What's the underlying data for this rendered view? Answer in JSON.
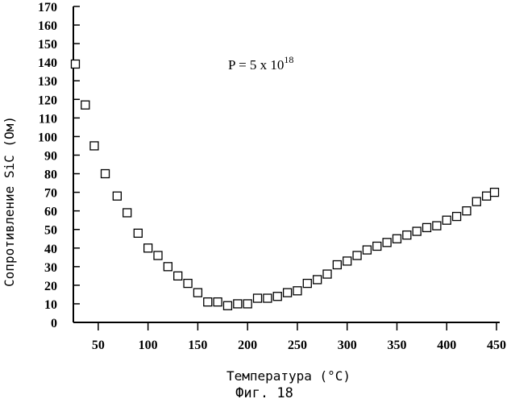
{
  "chart_data": {
    "type": "scatter",
    "title": "",
    "xlabel": "Температура (°C)",
    "ylabel": "Сопротивление SiC (Ом)",
    "xlim": [
      25,
      450
    ],
    "ylim": [
      0,
      170
    ],
    "xticks": [
      50,
      100,
      150,
      200,
      250,
      300,
      350,
      400,
      450
    ],
    "yticks": [
      0,
      10,
      20,
      30,
      40,
      50,
      60,
      70,
      80,
      90,
      100,
      110,
      120,
      130,
      140,
      150,
      160,
      170
    ],
    "grid": false,
    "marker": "square-open",
    "annotation": "P = 5 x 10",
    "annotation_exponent": "18",
    "caption": "Фиг. 18",
    "series": [
      {
        "x": [
          27,
          37,
          46,
          57,
          69,
          79,
          90,
          100,
          110,
          120,
          130,
          140,
          150,
          160,
          170,
          180,
          190,
          200,
          210,
          220,
          230,
          240,
          250,
          260,
          270,
          280,
          290,
          300,
          310,
          320,
          330,
          340,
          350,
          360,
          370,
          380,
          390,
          400,
          410,
          420,
          430,
          440,
          448
        ],
        "y": [
          139,
          117,
          95,
          80,
          68,
          59,
          48,
          40,
          36,
          30,
          25,
          21,
          16,
          11,
          11,
          9,
          10,
          10,
          13,
          13,
          14,
          16,
          17,
          21,
          23,
          26,
          31,
          33,
          36,
          39,
          41,
          43,
          45,
          47,
          49,
          51,
          52,
          55,
          57,
          60,
          65,
          68,
          70
        ]
      }
    ]
  }
}
